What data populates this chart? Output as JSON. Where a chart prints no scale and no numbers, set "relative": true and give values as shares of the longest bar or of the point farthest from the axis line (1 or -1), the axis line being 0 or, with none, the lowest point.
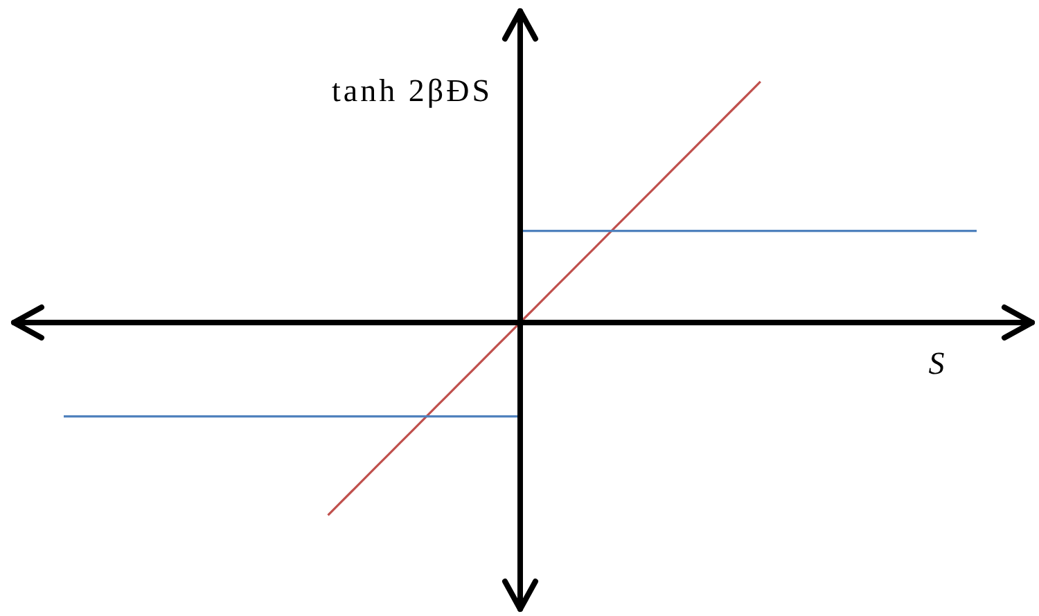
{
  "chart_data": {
    "type": "line",
    "relative": true,
    "marker": "none",
    "ylabel": "tanh 2βĐS",
    "xlabel": "S",
    "categories": [
      null,
      null,
      null,
      null,
      null,
      null,
      null,
      null,
      null,
      null,
      null,
      null,
      null,
      null,
      null,
      null,
      null,
      null,
      null,
      null,
      null,
      null,
      null,
      null,
      null,
      null,
      null,
      null,
      null,
      null,
      null,
      null,
      null,
      null,
      null,
      null,
      null,
      null,
      null,
      null,
      null,
      null,
      null,
      null,
      null,
      null,
      null,
      null,
      null,
      null,
      null,
      null,
      null,
      null,
      null,
      null,
      null,
      null,
      null,
      null,
      null,
      null,
      null,
      null,
      null,
      null,
      null,
      null,
      null,
      null,
      null,
      null,
      null,
      null,
      null,
      null,
      null
    ],
    "series": [
      {
        "color": "#4f81bd",
        "values": [
          -0.39,
          -0.39,
          -0.39,
          -0.39,
          -0.39,
          -0.39,
          -0.39,
          -0.39,
          -0.39,
          -0.39,
          -0.39,
          -0.39,
          -0.39,
          -0.39,
          -0.39,
          -0.39,
          -0.39,
          -0.39,
          -0.39,
          -0.39,
          -0.39,
          -0.39,
          -0.39,
          -0.39,
          -0.39,
          -0.39,
          -0.39,
          -0.39,
          -0.39,
          -0.39,
          -0.39,
          -0.39,
          -0.39,
          -0.39,
          -0.39,
          -0.39,
          -0.39,
          -0.39,
          -0.39,
          null,
          null,
          null,
          null,
          null,
          null,
          null,
          null,
          null,
          null,
          null,
          null,
          null,
          null,
          null,
          null,
          null,
          null,
          null,
          null,
          null,
          null,
          null,
          null,
          null,
          null,
          null,
          null,
          null,
          null,
          null,
          null,
          null,
          null,
          null,
          null,
          null,
          null
        ]
      },
      {
        "color": "#4f81bd",
        "values": [
          null,
          null,
          null,
          null,
          null,
          null,
          null,
          null,
          null,
          null,
          null,
          null,
          null,
          null,
          null,
          null,
          null,
          null,
          null,
          null,
          null,
          null,
          null,
          null,
          null,
          null,
          null,
          null,
          null,
          null,
          null,
          null,
          null,
          null,
          null,
          null,
          null,
          null,
          0.38,
          0.38,
          0.38,
          0.38,
          0.38,
          0.38,
          0.38,
          0.38,
          0.38,
          0.38,
          0.38,
          0.38,
          0.38,
          0.38,
          0.38,
          0.38,
          0.38,
          0.38,
          0.38,
          0.38,
          0.38,
          0.38,
          0.38,
          0.38,
          0.38,
          0.38,
          0.38,
          0.38,
          0.38,
          0.38,
          0.38,
          0.38,
          0.38,
          0.38,
          0.38,
          0.38,
          0.38,
          0.38,
          0.38
        ]
      },
      {
        "color": "#c0504d",
        "values": [
          null,
          null,
          null,
          null,
          null,
          null,
          null,
          null,
          null,
          null,
          null,
          null,
          null,
          null,
          null,
          null,
          null,
          null,
          null,
          null,
          null,
          null,
          -0.8,
          -0.75,
          -0.7,
          -0.65,
          -0.6,
          -0.55,
          -0.5,
          -0.45,
          -0.4,
          -0.35,
          -0.3,
          -0.25,
          -0.2,
          -0.15,
          -0.1,
          -0.05,
          0,
          0.05,
          0.1,
          0.15,
          0.2,
          0.25,
          0.3,
          0.35,
          0.4,
          0.45,
          0.5,
          0.55,
          0.6,
          0.65,
          0.7,
          0.75,
          0.8,
          0.85,
          0.9,
          0.95,
          1,
          null,
          null,
          null,
          null,
          null,
          null,
          null,
          null,
          null,
          null,
          null,
          null,
          null,
          null,
          null,
          null,
          null,
          null
        ]
      }
    ]
  }
}
